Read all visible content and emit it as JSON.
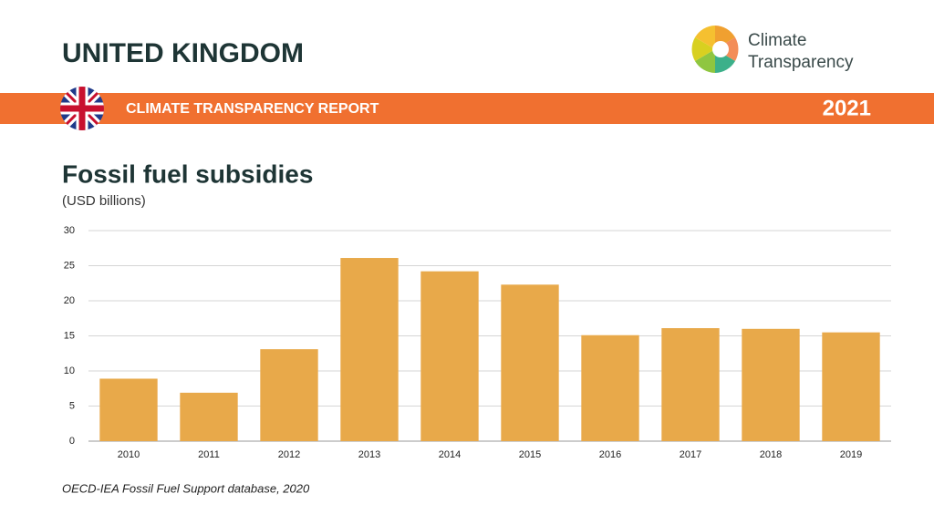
{
  "header": {
    "country": "UNITED KINGDOM",
    "logo_line1": "Climate",
    "logo_line2": "Transparency",
    "report": "CLIMATE TRANSPARENCY REPORT",
    "year": "2021"
  },
  "chart_data": {
    "type": "bar",
    "title": "Fossil fuel subsidies",
    "subtitle": "(USD billions)",
    "categories": [
      "2010",
      "2011",
      "2012",
      "2013",
      "2014",
      "2015",
      "2016",
      "2017",
      "2018",
      "2019"
    ],
    "values": [
      8.9,
      6.9,
      13.1,
      26.1,
      24.2,
      22.3,
      15.1,
      16.1,
      16.0,
      15.5
    ],
    "color": "#e8a94a",
    "ylim": [
      0,
      30
    ],
    "yticks": [
      0,
      5,
      10,
      15,
      20,
      25,
      30
    ],
    "grid": true,
    "source": "OECD-IEA Fossil Fuel Support database, 2020"
  }
}
